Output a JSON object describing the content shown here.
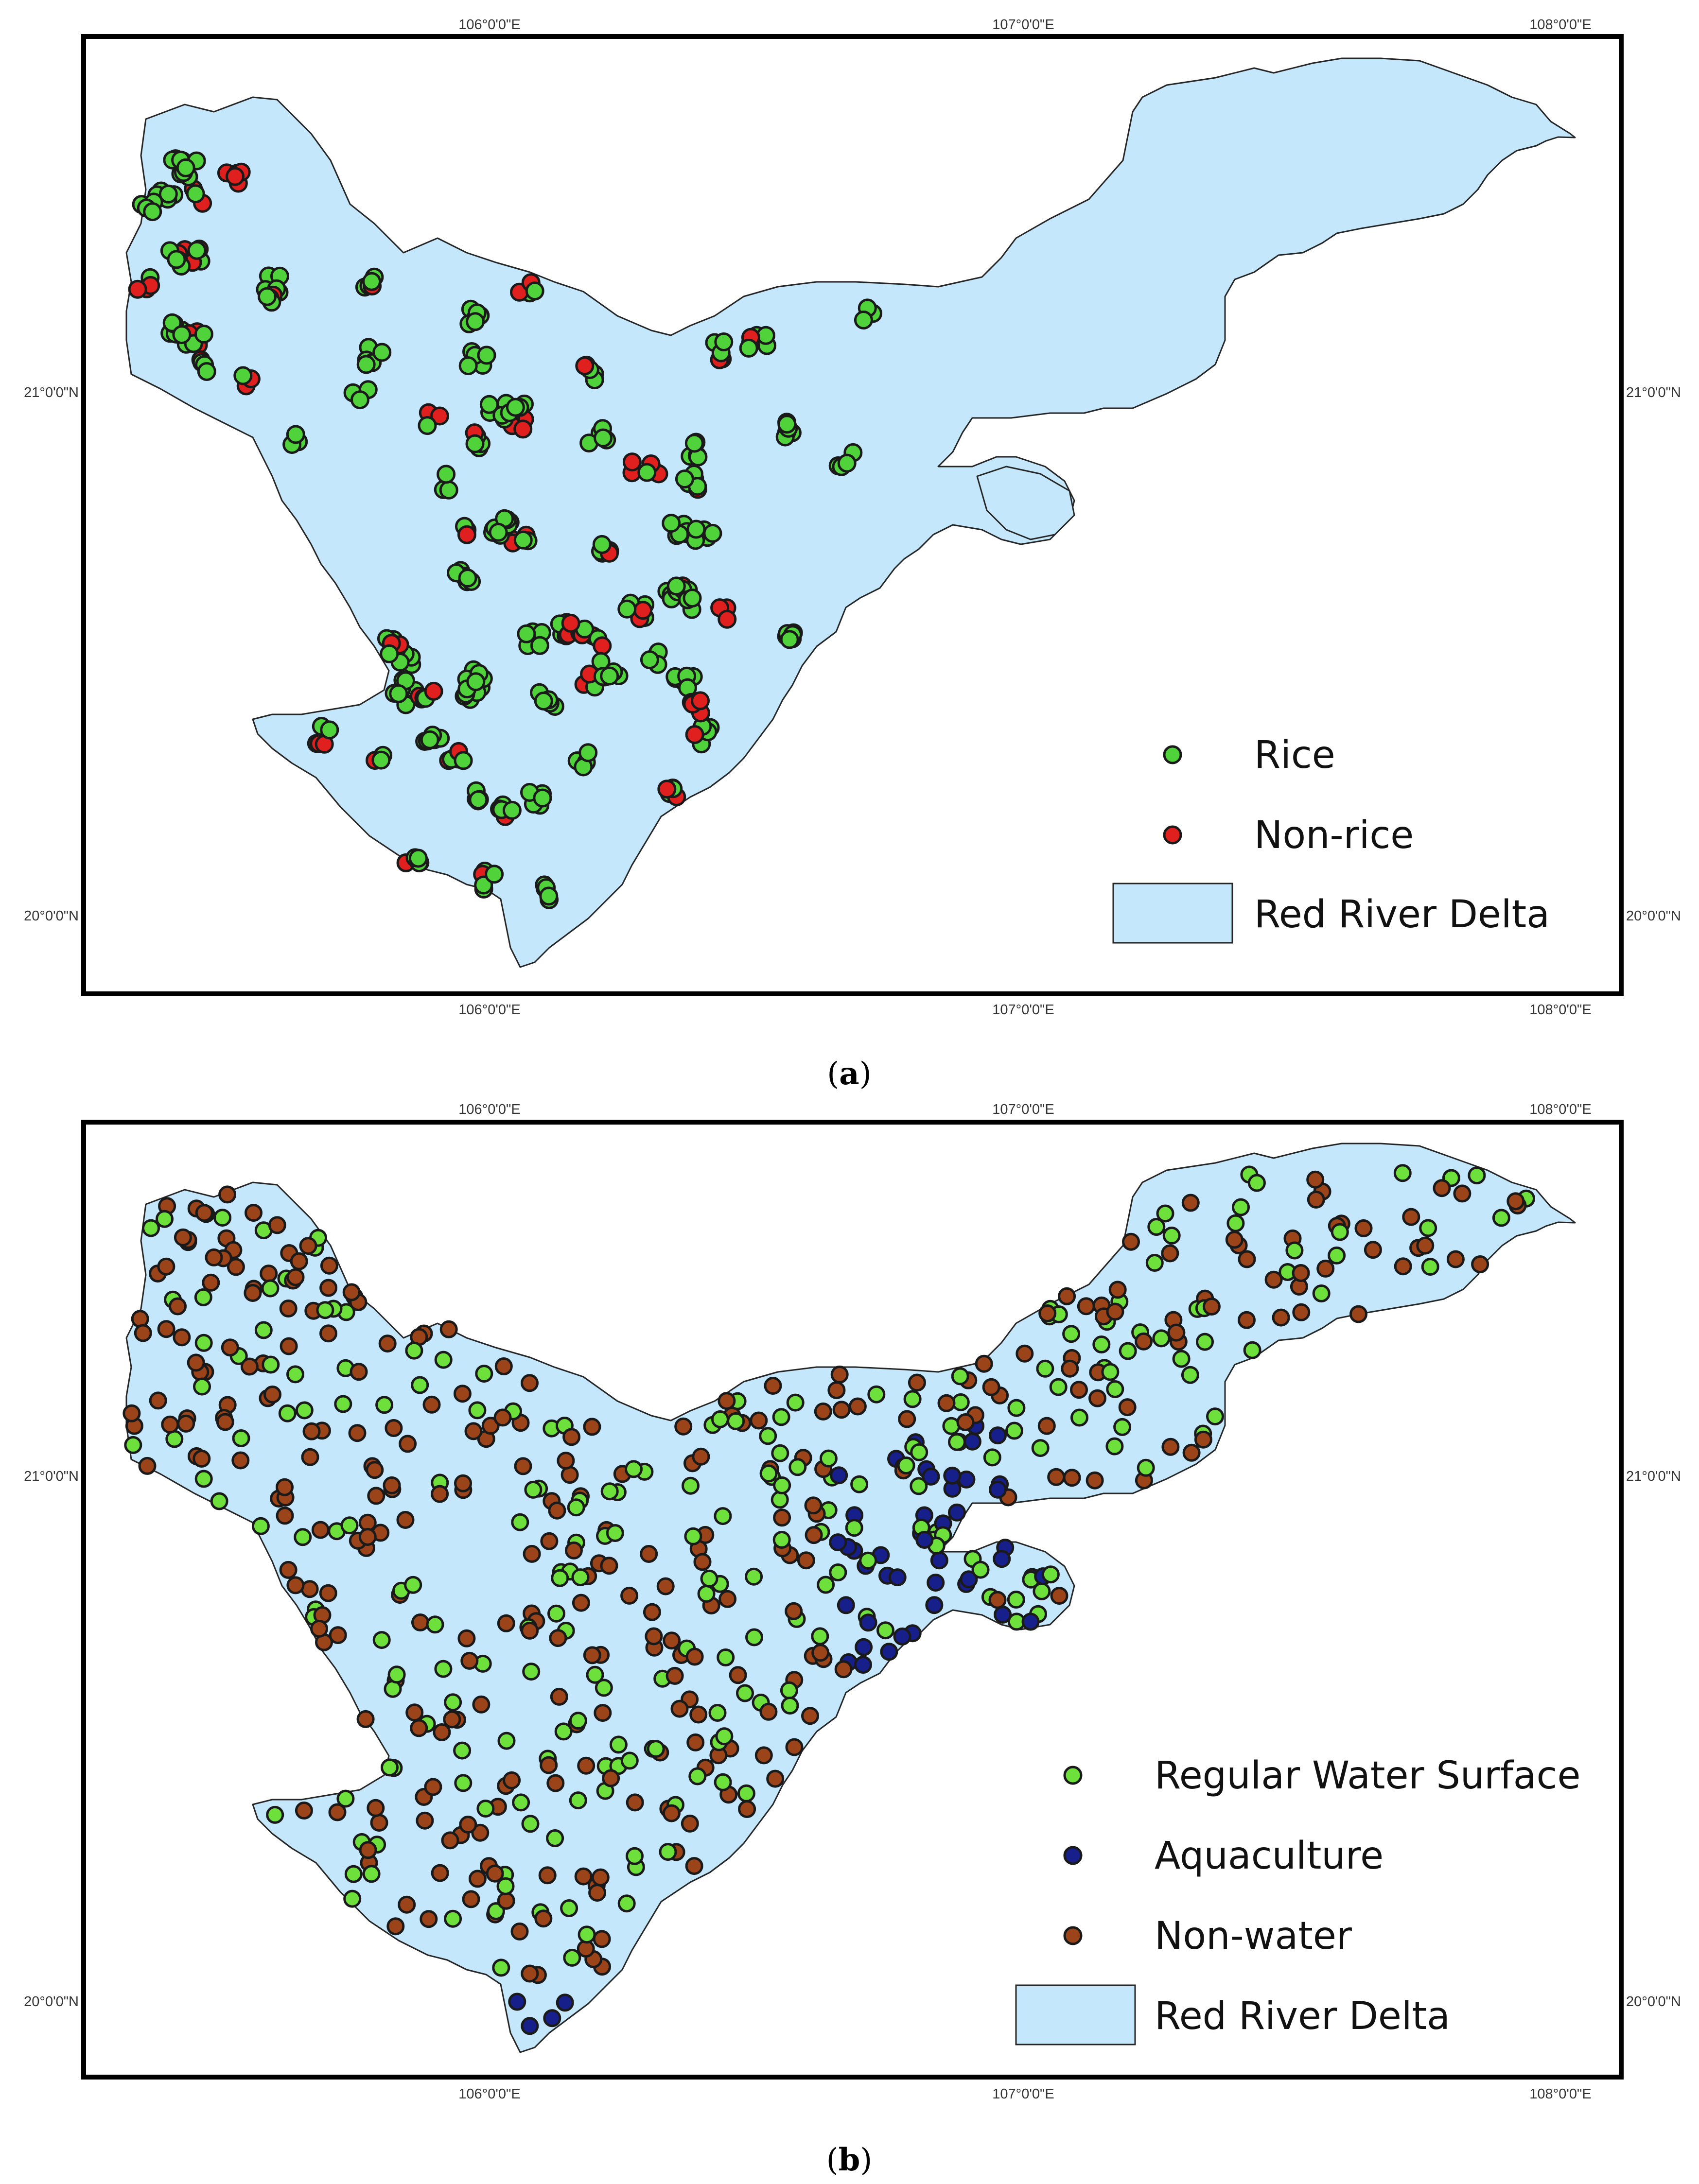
{
  "panels": [
    {
      "id": "a",
      "caption": "a",
      "lon_ticks": [
        "106°0'0\"E",
        "107°0'0\"E",
        "108°0'0\"E"
      ],
      "lat_ticks": [
        "21°0'0\"N",
        "20°0'0\"N"
      ],
      "legend": [
        {
          "label": "Rice",
          "symbol": "point",
          "color": "#4fd23a"
        },
        {
          "label": "Non-rice",
          "symbol": "point",
          "color": "#e01f1f"
        },
        {
          "label": "Red River Delta",
          "symbol": "polygon",
          "color": "#c4e7fb"
        }
      ]
    },
    {
      "id": "b",
      "caption": "b",
      "lon_ticks": [
        "106°0'0\"E",
        "107°0'0\"E",
        "108°0'0\"E"
      ],
      "lat_ticks": [
        "21°0'0\"N",
        "20°0'0\"N"
      ],
      "legend": [
        {
          "label": "Regular Water Surface",
          "symbol": "point",
          "color": "#6ee03c"
        },
        {
          "label": "Aquaculture",
          "symbol": "point",
          "color": "#17208a"
        },
        {
          "label": "Non-water",
          "symbol": "point",
          "color": "#9c4419"
        },
        {
          "label": "Red River Delta",
          "symbol": "polygon",
          "color": "#c4e7fb"
        }
      ]
    }
  ],
  "colors": {
    "delta_fill": "#c4e7fb",
    "rice": "#4fd23a",
    "non_rice": "#e01f1f",
    "regular_water": "#6ee03c",
    "aquaculture": "#17208a",
    "non_water": "#9c4419"
  }
}
